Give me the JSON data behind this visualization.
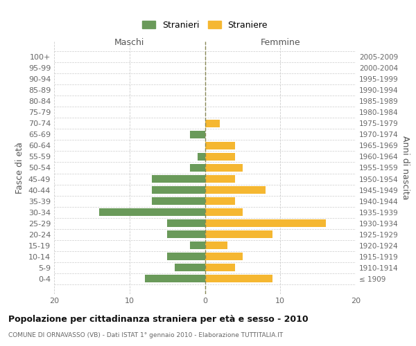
{
  "age_groups": [
    "100+",
    "95-99",
    "90-94",
    "85-89",
    "80-84",
    "75-79",
    "70-74",
    "65-69",
    "60-64",
    "55-59",
    "50-54",
    "45-49",
    "40-44",
    "35-39",
    "30-34",
    "25-29",
    "20-24",
    "15-19",
    "10-14",
    "5-9",
    "0-4"
  ],
  "birth_years": [
    "≤ 1909",
    "1910-1914",
    "1915-1919",
    "1920-1924",
    "1925-1929",
    "1930-1934",
    "1935-1939",
    "1940-1944",
    "1945-1949",
    "1950-1954",
    "1955-1959",
    "1960-1964",
    "1965-1969",
    "1970-1974",
    "1975-1979",
    "1980-1984",
    "1985-1989",
    "1990-1994",
    "1995-1999",
    "2000-2004",
    "2005-2009"
  ],
  "males": [
    0,
    0,
    0,
    0,
    0,
    0,
    0,
    2,
    0,
    1,
    2,
    7,
    7,
    7,
    14,
    5,
    5,
    2,
    5,
    4,
    8
  ],
  "females": [
    0,
    0,
    0,
    0,
    0,
    0,
    2,
    0,
    4,
    4,
    5,
    4,
    8,
    4,
    5,
    16,
    9,
    3,
    5,
    4,
    9
  ],
  "male_color": "#6a9a5a",
  "female_color": "#f5b731",
  "title": "Popolazione per cittadinanza straniera per età e sesso - 2010",
  "subtitle": "COMUNE DI ORNAVASSO (VB) - Dati ISTAT 1° gennaio 2010 - Elaborazione TUTTITALIA.IT",
  "left_label": "Maschi",
  "right_label": "Femmine",
  "ylabel": "Fasce di età",
  "ylabel_right": "Anni di nascita",
  "legend_male": "Stranieri",
  "legend_female": "Straniere",
  "xlim": 20,
  "background_color": "#ffffff",
  "grid_color": "#cccccc"
}
